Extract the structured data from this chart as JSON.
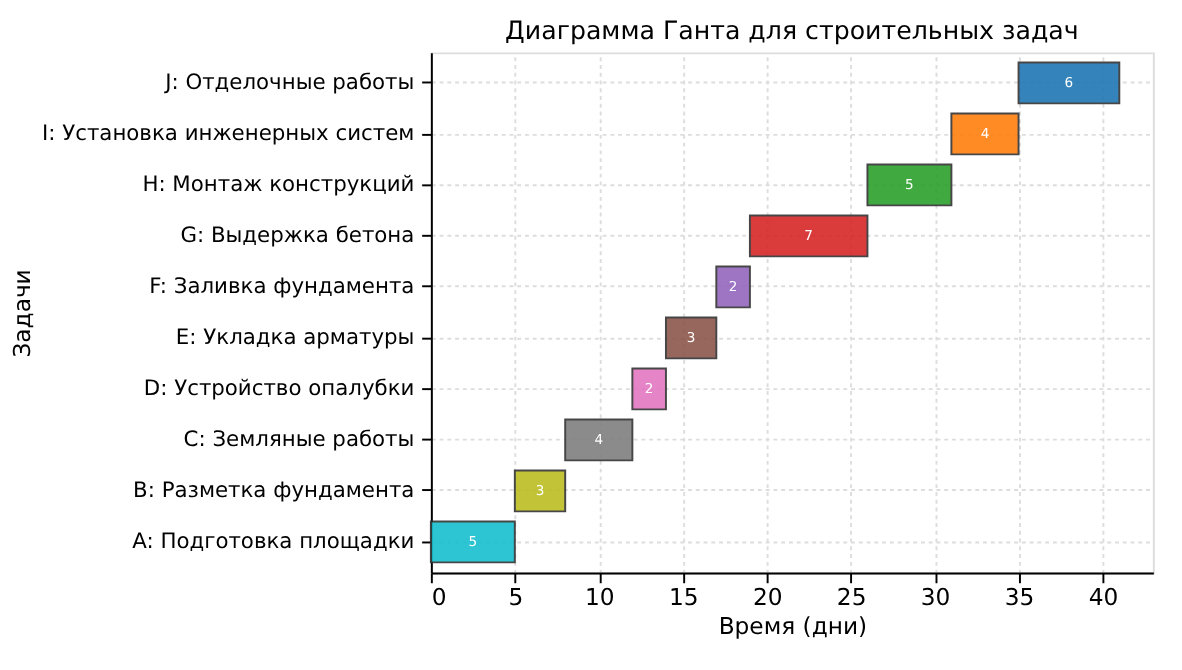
{
  "chart_data": {
    "type": "bar",
    "orientation": "horizontal",
    "title": "Диаграмма Ганта для строительных задач",
    "xlabel": "Время (дни)",
    "ylabel": "Задачи",
    "categories": [
      "J: Отделочные работы",
      "I: Установка инженерных систем",
      "H: Монтаж конструкций",
      "G: Выдержка бетона",
      "F: Заливка фундамента",
      "E: Укладка арматуры",
      "D: Устройство опалубки",
      "C: Земляные работы",
      "B: Разметка фундамента",
      "A: Подготовка площадки"
    ],
    "base": [
      35,
      31,
      26,
      19,
      17,
      14,
      12,
      8,
      5,
      0
    ],
    "values": [
      6,
      4,
      5,
      7,
      2,
      3,
      2,
      4,
      3,
      5
    ],
    "colors": [
      "#1f77b4",
      "#ff7f0e",
      "#2ca02c",
      "#d62728",
      "#9467bd",
      "#8c564b",
      "#e377c2",
      "#7f7f7f",
      "#bcbd22",
      "#17becf"
    ],
    "data_labels": true,
    "xlim": [
      0,
      43
    ],
    "xticks": [
      0,
      5,
      10,
      15,
      20,
      25,
      30,
      35,
      40
    ],
    "grid": true
  }
}
